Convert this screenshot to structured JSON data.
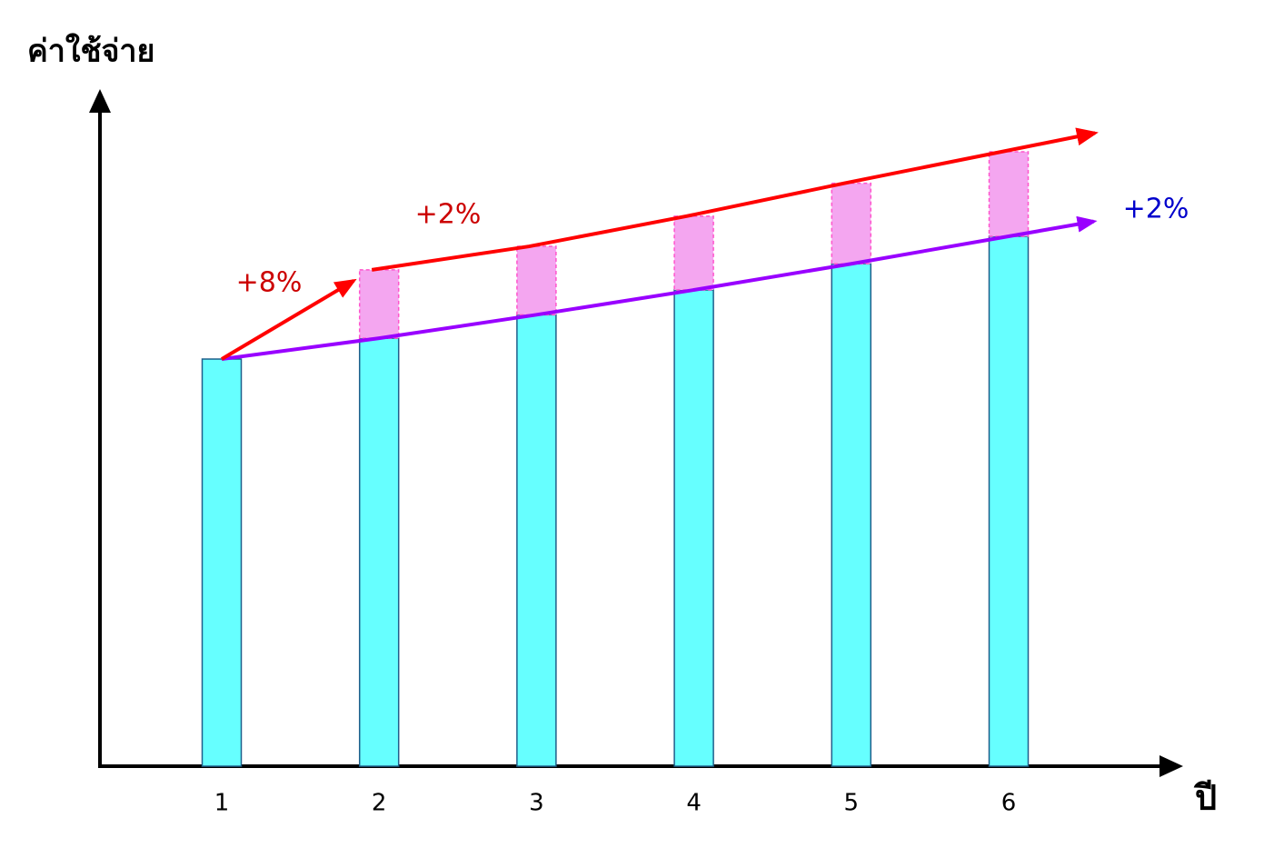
{
  "chart_data": {
    "type": "bar",
    "stacked": true,
    "y_label": "ค่าใช้จ่าย",
    "x_label": "ปี",
    "categories": [
      "1",
      "2",
      "3",
      "4",
      "5",
      "6"
    ],
    "ylim": [
      0,
      100
    ],
    "series": [
      {
        "color": "#66ffff",
        "values": [
          60.7,
          63.8,
          67.3,
          71.0,
          74.9,
          79.0
        ]
      },
      {
        "color": "#f4a6f0",
        "values": [
          null,
          10.2,
          10.2,
          11.0,
          12.0,
          12.6
        ]
      }
    ],
    "annotations": [
      {
        "text": "+8%",
        "color": "#cc0000"
      },
      {
        "text": "+2%",
        "color": "#cc0000"
      },
      {
        "text": "+2%",
        "color": "#0000cc"
      }
    ]
  }
}
